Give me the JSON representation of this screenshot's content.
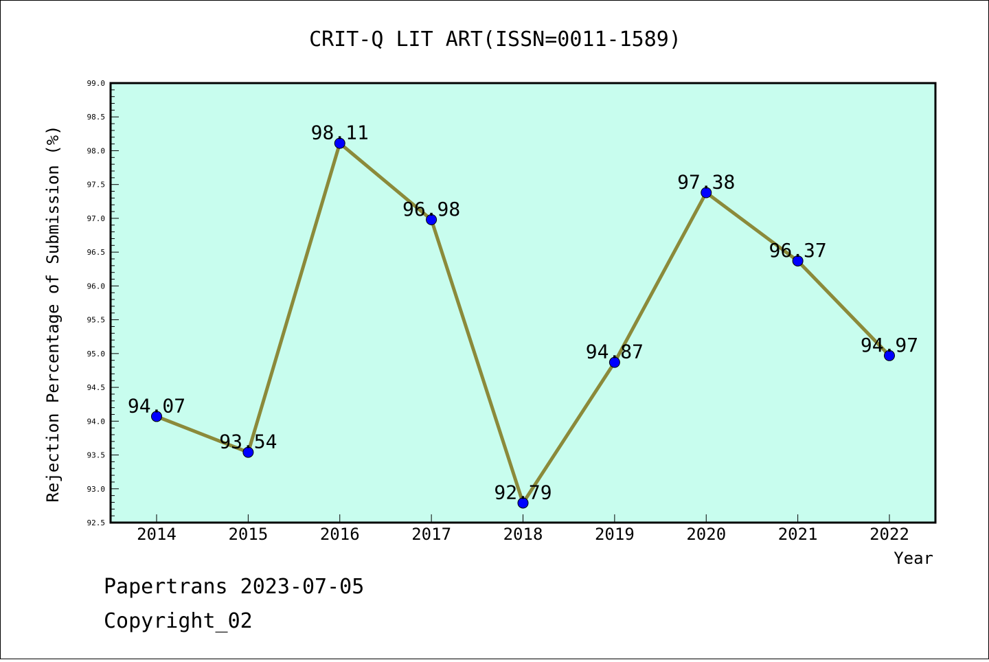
{
  "chart_data": {
    "type": "line",
    "title": "CRIT-Q LIT ART(ISSN=0011-1589)",
    "xlabel": "Year",
    "ylabel": "Rejection Percentage of Submission (%)",
    "categories": [
      "2014",
      "2015",
      "2016",
      "2017",
      "2018",
      "2019",
      "2020",
      "2021",
      "2022"
    ],
    "values": [
      94.07,
      93.54,
      98.11,
      96.98,
      92.79,
      94.87,
      97.38,
      96.37,
      94.97
    ],
    "data_labels": [
      "94.07",
      "93.54",
      "98.11",
      "96.98",
      "92.79",
      "94.87",
      "97.38",
      "96.37",
      "94.97"
    ],
    "ylim": [
      92.5,
      99.0
    ],
    "ytick_labels": [
      "92.5",
      "93.0",
      "93.5",
      "94.0",
      "94.5",
      "95.0",
      "95.5",
      "96.0",
      "96.5",
      "97.0",
      "97.5",
      "98.0",
      "98.5",
      "99.0"
    ],
    "grid": false,
    "legend": "none",
    "colors": {
      "plot_background": "#c8fdee",
      "line": "#8b8a3a",
      "marker": "#0000ff"
    }
  },
  "footer": {
    "line1": "Papertrans 2023-07-05",
    "line2": "Copyright_02"
  }
}
